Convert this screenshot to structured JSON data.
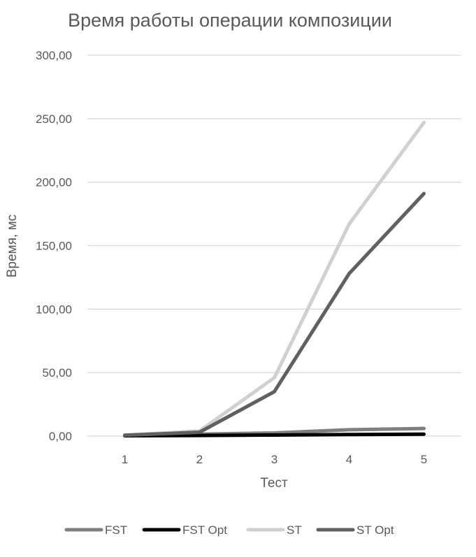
{
  "chart_data": {
    "type": "line",
    "title": "Время работы операции композиции",
    "xlabel": "Тест",
    "ylabel": "Время, мс",
    "categories": [
      "1",
      "2",
      "3",
      "4",
      "5"
    ],
    "ylim": [
      0,
      300
    ],
    "yticks": [
      0,
      50,
      100,
      150,
      200,
      250,
      300
    ],
    "ytick_labels": [
      "0,00",
      "50,00",
      "100,00",
      "150,00",
      "200,00",
      "250,00",
      "300,00"
    ],
    "grid": true,
    "legend_position": "bottom",
    "series": [
      {
        "name": "FST",
        "color": "#7f7f7f",
        "values": [
          0.5,
          1.5,
          2.5,
          5.0,
          6.0
        ]
      },
      {
        "name": "FST Opt",
        "color": "#000000",
        "values": [
          0.3,
          0.5,
          0.8,
          1.2,
          1.5
        ]
      },
      {
        "name": "ST",
        "color": "#d0d0d0",
        "values": [
          0.8,
          4.0,
          46.0,
          167.0,
          247.0
        ]
      },
      {
        "name": "ST Opt",
        "color": "#606060",
        "values": [
          0.7,
          3.0,
          35.0,
          128.0,
          191.0
        ]
      }
    ]
  }
}
